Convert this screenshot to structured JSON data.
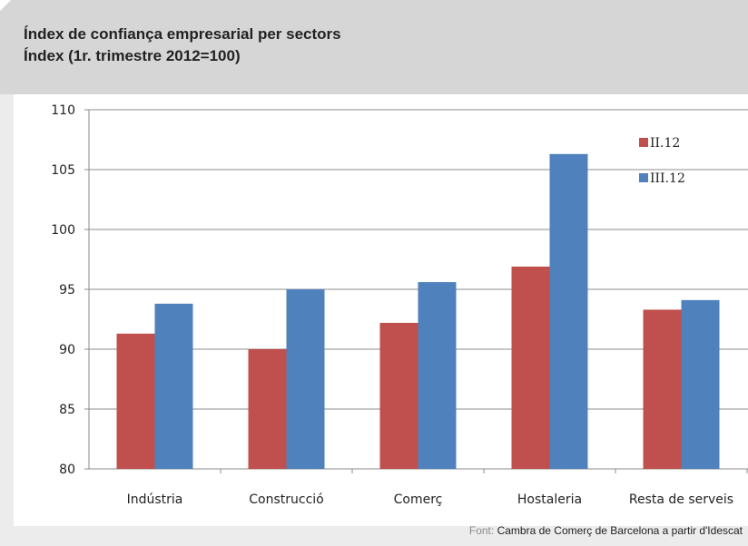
{
  "header": {
    "title": "Índex de confiança empresarial per sectors",
    "subtitle": "Índex (1r. trimestre 2012=100)"
  },
  "source": {
    "label": "Font:",
    "text": "Cambra de Comerç de Barcelona a partir d'Idescat"
  },
  "colors": {
    "header_bg": "#d6d6d6",
    "panel_bg": "#ececec",
    "series_1": "#c0504d",
    "series_2": "#4f81bd"
  },
  "chart_data": {
    "type": "bar",
    "categories": [
      "Indústria",
      "Construcció",
      "Comerç",
      "Hostaleria",
      "Resta de serveis"
    ],
    "series": [
      {
        "name": "II.12",
        "color": "#c0504d",
        "values": [
          91.3,
          90.0,
          92.2,
          96.9,
          93.3
        ]
      },
      {
        "name": "III.12",
        "color": "#4f81bd",
        "values": [
          93.8,
          95.0,
          95.6,
          106.3,
          94.1
        ]
      }
    ],
    "ylim": [
      80,
      110
    ],
    "yticks": [
      80,
      85,
      90,
      95,
      100,
      105,
      110
    ],
    "grid": true,
    "legend": "top-right",
    "xlabel": "",
    "ylabel": ""
  }
}
